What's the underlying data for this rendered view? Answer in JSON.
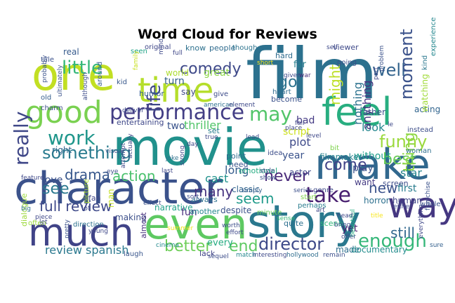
{
  "title": "Word Cloud for Reviews",
  "palette": "viridis",
  "words": [
    {
      "text": "film",
      "color": "#2c718e"
    },
    {
      "text": "movie",
      "color": "#21918c"
    },
    {
      "text": "one",
      "color": "#c2df23"
    },
    {
      "text": "character",
      "color": "#3b528b"
    },
    {
      "text": "story",
      "color": "#2a788e"
    },
    {
      "text": "even",
      "color": "#5ec962"
    },
    {
      "text": "time",
      "color": "#b5de2b"
    },
    {
      "text": "make",
      "color": "#31688e"
    },
    {
      "text": "much",
      "color": "#404387"
    },
    {
      "text": "good",
      "color": "#7ad151"
    },
    {
      "text": "feel",
      "color": "#28ae80"
    },
    {
      "text": "way",
      "color": "#453781"
    },
    {
      "text": "performance",
      "color": "#433e85"
    },
    {
      "text": "little",
      "color": "#35b779"
    },
    {
      "text": "comedy",
      "color": "#3e4989"
    },
    {
      "text": "life",
      "color": "#3f4788"
    },
    {
      "text": "well",
      "color": "#33638d"
    },
    {
      "text": "may",
      "color": "#52c569"
    },
    {
      "text": "work",
      "color": "#1f968b"
    },
    {
      "text": "go",
      "color": "#2c728e"
    },
    {
      "text": "take",
      "color": "#481f70"
    },
    {
      "text": "funny",
      "color": "#9bd93c"
    },
    {
      "text": "moment",
      "color": "#3b528b"
    },
    {
      "text": "best",
      "color": "#6ccd5a"
    },
    {
      "text": "might",
      "color": "#bddf26"
    },
    {
      "text": "something",
      "color": "#297b8e"
    },
    {
      "text": "drama",
      "color": "#38588c"
    },
    {
      "text": "action",
      "color": "#4ac16d"
    },
    {
      "text": "really",
      "color": "#3f4788"
    },
    {
      "text": "come",
      "color": "#414287"
    },
    {
      "text": "never",
      "color": "#482878"
    },
    {
      "text": "thing",
      "color": "#8fd744"
    },
    {
      "text": "see",
      "color": "#2a788e"
    },
    {
      "text": "seem",
      "color": "#1f9a8a"
    },
    {
      "text": "new",
      "color": "#3b528b"
    },
    {
      "text": "enough",
      "color": "#35b779"
    },
    {
      "text": "director",
      "color": "#3e4a89"
    },
    {
      "text": "better",
      "color": "#6ece58"
    },
    {
      "text": "end",
      "color": "#5ec962"
    },
    {
      "text": "still",
      "color": "#31688e"
    },
    {
      "text": "full review",
      "color": "#3e4989"
    },
    {
      "text": "review spanish",
      "color": "#2a788e"
    },
    {
      "text": "many",
      "color": "#46337f"
    },
    {
      "text": "star",
      "color": "#25848e"
    },
    {
      "text": "plot",
      "color": "#3e4a89"
    },
    {
      "text": "cast",
      "color": "#20928c"
    },
    {
      "text": "two",
      "color": "#3a548c"
    },
    {
      "text": "thriller",
      "color": "#52c569"
    },
    {
      "text": "love",
      "color": "#3b528b"
    },
    {
      "text": "fun",
      "color": "#472c7a"
    },
    {
      "text": "look",
      "color": "#24868e"
    },
    {
      "text": "bad",
      "color": "#443983"
    },
    {
      "text": "first",
      "color": "#287c8e"
    },
    {
      "text": "year",
      "color": "#3a538b"
    },
    {
      "text": "long",
      "color": "#365d8d"
    },
    {
      "text": "right",
      "color": "#31688e"
    },
    {
      "text": "world",
      "color": "#addc30"
    },
    {
      "text": "great",
      "color": "#8bd646"
    },
    {
      "text": "know",
      "color": "#2d718e"
    },
    {
      "text": "people",
      "color": "#2f6b8e"
    },
    {
      "text": "turn",
      "color": "#34608d"
    },
    {
      "text": "say",
      "color": "#3f4889"
    },
    {
      "text": "real",
      "color": "#375b8d"
    },
    {
      "text": "script",
      "color": "#cde11d"
    },
    {
      "text": "play",
      "color": "#3a538b"
    },
    {
      "text": "human",
      "color": "#404688"
    },
    {
      "text": "horror",
      "color": "#2d708e"
    },
    {
      "text": "want",
      "color": "#443a83"
    },
    {
      "text": "yet",
      "color": "#481a6c"
    },
    {
      "text": "made",
      "color": "#2e6e8e"
    },
    {
      "text": "documentary",
      "color": "#228c8d"
    },
    {
      "text": "nothing",
      "color": "#2c728e"
    },
    {
      "text": "anything",
      "color": "#46327e"
    },
    {
      "text": "making",
      "color": "#3c4f8a"
    },
    {
      "text": "classic",
      "color": "#32658e"
    },
    {
      "text": "emotional",
      "color": "#25ac82"
    },
    {
      "text": "narrative",
      "color": "#1fa088"
    },
    {
      "text": "another",
      "color": "#24868e"
    },
    {
      "text": "despite",
      "color": "#3b518b"
    },
    {
      "text": "always",
      "color": "#2d708e"
    },
    {
      "text": "every",
      "color": "#25ab82"
    },
    {
      "text": "actor",
      "color": "#3f4889"
    },
    {
      "text": "need",
      "color": "#3a538b"
    },
    {
      "text": "point",
      "color": "#2e6d8e"
    },
    {
      "text": "without",
      "color": "#1e9c89"
    },
    {
      "text": "entertaining",
      "color": "#3f4889"
    },
    {
      "text": "set",
      "color": "#287d8e"
    },
    {
      "text": "dialogue",
      "color": "#9dd93b"
    },
    {
      "text": "laugh",
      "color": "#39558c"
    },
    {
      "text": "lack",
      "color": "#414487"
    },
    {
      "text": "almost",
      "color": "#472f7d"
    },
    {
      "text": "far",
      "color": "#277f8e"
    },
    {
      "text": "hard",
      "color": "#2f6c8e"
    },
    {
      "text": "rather",
      "color": "#3c508b"
    },
    {
      "text": "filmmaker",
      "color": "#26828e"
    },
    {
      "text": "scene",
      "color": "#31b57b"
    },
    {
      "text": "screen",
      "color": "#3d4d8a"
    },
    {
      "text": "acting",
      "color": "#32658e"
    },
    {
      "text": "watching",
      "color": "#a0da39"
    },
    {
      "text": "humor",
      "color": "#345f8d"
    },
    {
      "text": "direction",
      "color": "#2d718e"
    },
    {
      "text": "fan",
      "color": "#3f4788"
    },
    {
      "text": "original",
      "color": "#3f4788"
    },
    {
      "text": "seen",
      "color": "#20a386"
    },
    {
      "text": "around",
      "color": "#365c8d"
    },
    {
      "text": "tale",
      "color": "#3b518b"
    },
    {
      "text": "kid",
      "color": "#38588c"
    },
    {
      "text": "old",
      "color": "#355e8d"
    },
    {
      "text": "charm",
      "color": "#3d4e8a"
    },
    {
      "text": "though",
      "color": "#2c738e"
    },
    {
      "text": "give",
      "color": "#3e4c8a"
    },
    {
      "text": "viewer",
      "color": "#3e4989"
    },
    {
      "text": "going",
      "color": "#3c4f8a"
    },
    {
      "text": "quite",
      "color": "#2d708e"
    },
    {
      "text": "sense",
      "color": "#37b878"
    },
    {
      "text": "minute",
      "color": "#6ece58"
    },
    {
      "text": "series",
      "color": "#3c508b"
    },
    {
      "text": "genre",
      "color": "#3e4989"
    },
    {
      "text": "start",
      "color": "#81d34d"
    },
    {
      "text": "idea",
      "color": "#3d4e8a"
    },
    {
      "text": "lot",
      "color": "#3e4989"
    },
    {
      "text": "bit",
      "color": "#7fd34e"
    },
    {
      "text": "place",
      "color": "#3f4788"
    },
    {
      "text": "become",
      "color": "#3b528b"
    },
    {
      "text": "heart",
      "color": "#2f6b8e"
    },
    {
      "text": "kind",
      "color": "#2a778e"
    },
    {
      "text": "experience",
      "color": "#24878e"
    },
    {
      "text": "instead",
      "color": "#3d4e8a"
    },
    {
      "text": "woman",
      "color": "#2e6f8e"
    },
    {
      "text": "perhaps",
      "color": "#287c8e"
    },
    {
      "text": "last",
      "color": "#3f4889"
    },
    {
      "text": "joke",
      "color": "#2d718e"
    },
    {
      "text": "sort",
      "color": "#3e4c8a"
    },
    {
      "text": "cinema",
      "color": "#238a8d"
    },
    {
      "text": "sequel",
      "color": "#3d4d8a"
    },
    {
      "text": "young",
      "color": "#3f4889"
    },
    {
      "text": "pretty",
      "color": "#3b528b"
    },
    {
      "text": "feature",
      "color": "#3f4889"
    },
    {
      "text": "big",
      "color": "#2d718e"
    },
    {
      "text": "often",
      "color": "#9bd93c"
    },
    {
      "text": "visual",
      "color": "#39568c"
    },
    {
      "text": "picture",
      "color": "#addc30"
    },
    {
      "text": "man",
      "color": "#c2df23"
    },
    {
      "text": "beautiful",
      "color": "#26ad81"
    },
    {
      "text": "bring",
      "color": "#3d4e8a"
    },
    {
      "text": "hollywood",
      "color": "#2e6d8e"
    },
    {
      "text": "remain",
      "color": "#3c508b"
    },
    {
      "text": "match",
      "color": "#24878e"
    },
    {
      "text": "interesting",
      "color": "#3e4989"
    },
    {
      "text": "whole",
      "color": "#3b528b"
    },
    {
      "text": "franchise",
      "color": "#3b528b"
    },
    {
      "text": "sure",
      "color": "#34608d"
    },
    {
      "text": "everything",
      "color": "#3f4788"
    },
    {
      "text": "piece",
      "color": "#3f4889"
    },
    {
      "text": "let",
      "color": "#3f4788"
    },
    {
      "text": "ultimately",
      "color": "#3b528b"
    },
    {
      "text": "probably",
      "color": "#3b528b"
    },
    {
      "text": "although",
      "color": "#3d4d8a"
    },
    {
      "text": "family",
      "color": "#c8e020"
    },
    {
      "text": "mind",
      "color": "#3e4989"
    },
    {
      "text": "full",
      "color": "#3f4788"
    },
    {
      "text": "given",
      "color": "#3e4a89"
    },
    {
      "text": "war",
      "color": "#472d7b"
    },
    {
      "text": "self",
      "color": "#3e4989"
    },
    {
      "text": "american",
      "color": "#2d708e"
    },
    {
      "text": "element",
      "color": "#3e4989"
    },
    {
      "text": "true",
      "color": "#3f4788"
    },
    {
      "text": "day",
      "color": "#3f4889"
    },
    {
      "text": "lead",
      "color": "#3e4989"
    },
    {
      "text": "strong",
      "color": "#3f4889"
    },
    {
      "text": "simply",
      "color": "#34608d"
    },
    {
      "text": "worth",
      "color": "#3d4e8a"
    },
    {
      "text": "effort",
      "color": "#3e4989"
    },
    {
      "text": "fail",
      "color": "#3f4788"
    },
    {
      "text": "deliver",
      "color": "#3e4a89"
    },
    {
      "text": "style",
      "color": "#3f4788"
    },
    {
      "text": "show",
      "color": "#3b528b"
    },
    {
      "text": "art",
      "color": "#3f4788"
    },
    {
      "text": "head",
      "color": "#3f4788"
    },
    {
      "text": "title",
      "color": "#f6e620"
    },
    {
      "text": "either",
      "color": "#3e4989"
    },
    {
      "text": "offer",
      "color": "#3d4e8a"
    },
    {
      "text": "summer",
      "color": "#f0e51c"
    },
    {
      "text": "le",
      "color": "#3e4989"
    },
    {
      "text": "level",
      "color": "#3f4889"
    },
    {
      "text": "problem",
      "color": "#3b528b"
    },
    {
      "text": "part",
      "color": "#3f4788"
    },
    {
      "text": "attempt",
      "color": "#3e4989"
    },
    {
      "text": "actually",
      "color": "#3e4a89"
    },
    {
      "text": "eye",
      "color": "#3d4e8a"
    },
    {
      "text": "effect",
      "color": "#3b528b"
    },
    {
      "text": "short",
      "color": "#f6e620"
    }
  ]
}
